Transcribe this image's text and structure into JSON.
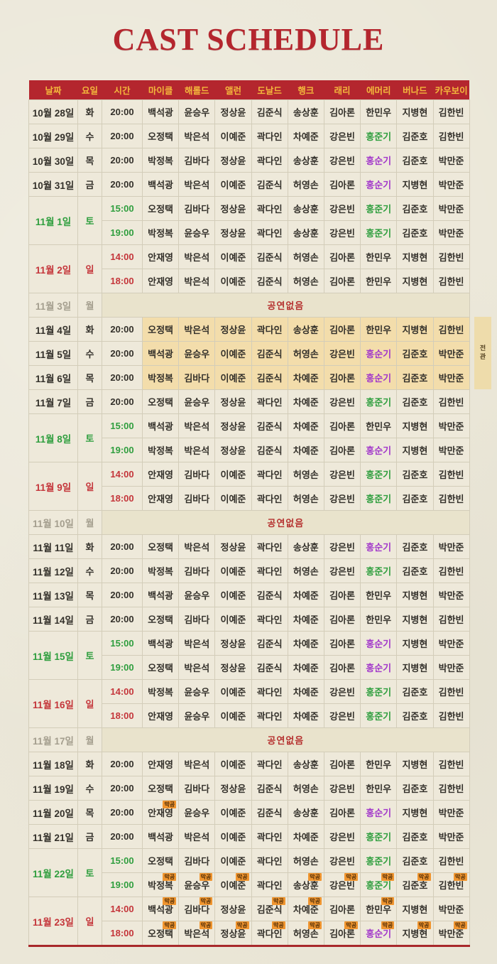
{
  "title": "CAST SCHEDULE",
  "side_tab": {
    "label": "전관"
  },
  "badge_label": "막공",
  "no_show_label": "공연없음",
  "colors": {
    "header_bg": "#b4262e",
    "header_text": "#f3b83c",
    "title": "#b4262e",
    "saturday_green": "#2f9e3e",
    "sunday_red": "#c4353a",
    "name_purple": "#a238ca",
    "monday_gray": "#a49e8e",
    "highlight_bg": "#f3ddab",
    "noshow_bg": "#e9e3cc",
    "badge_bg": "#f0952f",
    "page_bg": "#ebe7d8",
    "bottom_rule": "#a8292b"
  },
  "name_colors": {
    "홍준기": "green",
    "홍순기": "purple"
  },
  "table": {
    "columns": [
      "날짜",
      "요일",
      "시간",
      "마이클",
      "해롤드",
      "앨런",
      "도날드",
      "행크",
      "래리",
      "에머리",
      "버나드",
      "카우보이"
    ],
    "groups": [
      {
        "date": "10월 28일",
        "day": "화",
        "kind": "weekday",
        "slots": [
          {
            "time": "20:00",
            "cast": [
              "백석광",
              "윤승우",
              "정상윤",
              "김준식",
              "송상훈",
              "김아론",
              "한민우",
              "지병현",
              "김한빈"
            ]
          }
        ]
      },
      {
        "date": "10월 29일",
        "day": "수",
        "kind": "weekday",
        "slots": [
          {
            "time": "20:00",
            "cast": [
              "오정택",
              "박은석",
              "이예준",
              "곽다인",
              "차예준",
              "강은빈",
              "홍준기",
              "김준호",
              "김한빈"
            ]
          }
        ]
      },
      {
        "date": "10월 30일",
        "day": "목",
        "kind": "weekday",
        "slots": [
          {
            "time": "20:00",
            "cast": [
              "박정복",
              "김바다",
              "정상윤",
              "곽다인",
              "송상훈",
              "강은빈",
              "홍순기",
              "김준호",
              "박만준"
            ]
          }
        ]
      },
      {
        "date": "10월 31일",
        "day": "금",
        "kind": "weekday",
        "slots": [
          {
            "time": "20:00",
            "cast": [
              "백석광",
              "박은석",
              "이예준",
              "김준식",
              "허영손",
              "김아론",
              "홍순기",
              "지병현",
              "박만준"
            ]
          }
        ]
      },
      {
        "date": "11월 1일",
        "day": "토",
        "kind": "sat",
        "slots": [
          {
            "time": "15:00",
            "cast": [
              "오정택",
              "김바다",
              "정상윤",
              "곽다인",
              "송상훈",
              "강은빈",
              "홍준기",
              "김준호",
              "박만준"
            ]
          },
          {
            "time": "19:00",
            "cast": [
              "박정복",
              "윤승우",
              "정상윤",
              "곽다인",
              "송상훈",
              "강은빈",
              "홍준기",
              "김준호",
              "박만준"
            ]
          }
        ]
      },
      {
        "date": "11월 2일",
        "day": "일",
        "kind": "sun",
        "slots": [
          {
            "time": "14:00",
            "cast": [
              "안재영",
              "박은석",
              "이예준",
              "김준식",
              "허영손",
              "김아론",
              "한민우",
              "지병현",
              "김한빈"
            ]
          },
          {
            "time": "18:00",
            "cast": [
              "안재영",
              "박은석",
              "이예준",
              "김준식",
              "허영손",
              "김아론",
              "한민우",
              "지병현",
              "김한빈"
            ]
          }
        ]
      },
      {
        "date": "11월 3일",
        "day": "월",
        "kind": "mon",
        "no_show": true
      },
      {
        "date": "11월 4일",
        "day": "화",
        "kind": "weekday",
        "highlight": true,
        "slots": [
          {
            "time": "20:00",
            "cast": [
              "오정택",
              "박은석",
              "정상윤",
              "곽다인",
              "송상훈",
              "김아론",
              "한민우",
              "지병현",
              "김한빈"
            ]
          }
        ]
      },
      {
        "date": "11월 5일",
        "day": "수",
        "kind": "weekday",
        "highlight": true,
        "slots": [
          {
            "time": "20:00",
            "cast": [
              "백석광",
              "윤승우",
              "이예준",
              "김준식",
              "허영손",
              "강은빈",
              "홍순기",
              "김준호",
              "박만준"
            ]
          }
        ]
      },
      {
        "date": "11월 6일",
        "day": "목",
        "kind": "weekday",
        "highlight": true,
        "slots": [
          {
            "time": "20:00",
            "cast": [
              "박정복",
              "김바다",
              "이예준",
              "김준식",
              "차예준",
              "김아론",
              "홍순기",
              "김준호",
              "박만준"
            ]
          }
        ]
      },
      {
        "date": "11월 7일",
        "day": "금",
        "kind": "weekday",
        "slots": [
          {
            "time": "20:00",
            "cast": [
              "오정택",
              "윤승우",
              "정상윤",
              "곽다인",
              "차예준",
              "강은빈",
              "홍준기",
              "김준호",
              "김한빈"
            ]
          }
        ]
      },
      {
        "date": "11월 8일",
        "day": "토",
        "kind": "sat",
        "slots": [
          {
            "time": "15:00",
            "cast": [
              "백석광",
              "박은석",
              "정상윤",
              "김준식",
              "차예준",
              "김아론",
              "한민우",
              "지병현",
              "박만준"
            ]
          },
          {
            "time": "19:00",
            "cast": [
              "박정복",
              "박은석",
              "정상윤",
              "김준식",
              "차예준",
              "김아론",
              "홍순기",
              "지병현",
              "박만준"
            ]
          }
        ]
      },
      {
        "date": "11월 9일",
        "day": "일",
        "kind": "sun",
        "slots": [
          {
            "time": "14:00",
            "cast": [
              "안재영",
              "김바다",
              "이예준",
              "곽다인",
              "허영손",
              "강은빈",
              "홍준기",
              "김준호",
              "김한빈"
            ]
          },
          {
            "time": "18:00",
            "cast": [
              "안재영",
              "김바다",
              "이예준",
              "곽다인",
              "허영손",
              "강은빈",
              "홍준기",
              "김준호",
              "김한빈"
            ]
          }
        ]
      },
      {
        "date": "11월 10일",
        "day": "월",
        "kind": "mon",
        "no_show": true
      },
      {
        "date": "11월 11일",
        "day": "화",
        "kind": "weekday",
        "slots": [
          {
            "time": "20:00",
            "cast": [
              "오정택",
              "박은석",
              "정상윤",
              "곽다인",
              "송상훈",
              "강은빈",
              "홍순기",
              "김준호",
              "박만준"
            ]
          }
        ]
      },
      {
        "date": "11월 12일",
        "day": "수",
        "kind": "weekday",
        "slots": [
          {
            "time": "20:00",
            "cast": [
              "박정복",
              "김바다",
              "이예준",
              "곽다인",
              "허영손",
              "강은빈",
              "홍준기",
              "김준호",
              "김한빈"
            ]
          }
        ]
      },
      {
        "date": "11월 13일",
        "day": "목",
        "kind": "weekday",
        "slots": [
          {
            "time": "20:00",
            "cast": [
              "백석광",
              "윤승우",
              "이예준",
              "김준식",
              "차예준",
              "김아론",
              "한민우",
              "지병현",
              "박만준"
            ]
          }
        ]
      },
      {
        "date": "11월 14일",
        "day": "금",
        "kind": "weekday",
        "slots": [
          {
            "time": "20:00",
            "cast": [
              "오정택",
              "김바다",
              "이예준",
              "곽다인",
              "차예준",
              "김아론",
              "한민우",
              "지병현",
              "김한빈"
            ]
          }
        ]
      },
      {
        "date": "11월 15일",
        "day": "토",
        "kind": "sat",
        "slots": [
          {
            "time": "15:00",
            "cast": [
              "백석광",
              "박은석",
              "정상윤",
              "김준식",
              "차예준",
              "김아론",
              "홍순기",
              "지병현",
              "박만준"
            ]
          },
          {
            "time": "19:00",
            "cast": [
              "오정택",
              "박은석",
              "정상윤",
              "김준식",
              "차예준",
              "김아론",
              "홍순기",
              "지병현",
              "박만준"
            ]
          }
        ]
      },
      {
        "date": "11월 16일",
        "day": "일",
        "kind": "sun",
        "slots": [
          {
            "time": "14:00",
            "cast": [
              "박정복",
              "윤승우",
              "이예준",
              "곽다인",
              "차예준",
              "강은빈",
              "홍준기",
              "김준호",
              "김한빈"
            ]
          },
          {
            "time": "18:00",
            "cast": [
              "안재영",
              "윤승우",
              "이예준",
              "곽다인",
              "차예준",
              "강은빈",
              "홍준기",
              "김준호",
              "김한빈"
            ]
          }
        ]
      },
      {
        "date": "11월 17일",
        "day": "월",
        "kind": "mon",
        "no_show": true
      },
      {
        "date": "11월 18일",
        "day": "화",
        "kind": "weekday",
        "slots": [
          {
            "time": "20:00",
            "cast": [
              "안재영",
              "박은석",
              "이예준",
              "곽다인",
              "송상훈",
              "김아론",
              "한민우",
              "지병현",
              "김한빈"
            ]
          }
        ]
      },
      {
        "date": "11월 19일",
        "day": "수",
        "kind": "weekday",
        "slots": [
          {
            "time": "20:00",
            "cast": [
              "오정택",
              "김바다",
              "정상윤",
              "김준식",
              "허영손",
              "강은빈",
              "한민우",
              "김준호",
              "김한빈"
            ]
          }
        ]
      },
      {
        "date": "11월 20일",
        "day": "목",
        "kind": "weekday",
        "slots": [
          {
            "time": "20:00",
            "cast": [
              "안재영",
              "윤승우",
              "이예준",
              "김준식",
              "송상훈",
              "김아론",
              "홍순기",
              "지병현",
              "박만준"
            ],
            "badges": [
              0
            ]
          }
        ]
      },
      {
        "date": "11월 21일",
        "day": "금",
        "kind": "weekday",
        "slots": [
          {
            "time": "20:00",
            "cast": [
              "백석광",
              "박은석",
              "이예준",
              "곽다인",
              "차예준",
              "강은빈",
              "홍준기",
              "김준호",
              "박만준"
            ]
          }
        ]
      },
      {
        "date": "11월 22일",
        "day": "토",
        "kind": "sat",
        "slots": [
          {
            "time": "15:00",
            "cast": [
              "오정택",
              "김바다",
              "이예준",
              "곽다인",
              "허영손",
              "강은빈",
              "홍준기",
              "김준호",
              "김한빈"
            ]
          },
          {
            "time": "19:00",
            "cast": [
              "박정복",
              "윤승우",
              "이예준",
              "곽다인",
              "송상훈",
              "강은빈",
              "홍준기",
              "김준호",
              "김한빈"
            ],
            "badges": [
              0,
              1,
              2,
              4,
              5,
              6,
              7,
              8
            ]
          }
        ]
      },
      {
        "date": "11월 23일",
        "day": "일",
        "kind": "sun",
        "slots": [
          {
            "time": "14:00",
            "cast": [
              "백석광",
              "김바다",
              "정상윤",
              "김준식",
              "차예준",
              "김아론",
              "한민우",
              "지병현",
              "박만준"
            ],
            "badges": [
              0,
              1,
              3,
              4,
              6
            ]
          },
          {
            "time": "18:00",
            "cast": [
              "오정택",
              "박은석",
              "정상윤",
              "곽다인",
              "허영손",
              "김아론",
              "홍순기",
              "지병현",
              "박만준"
            ],
            "badges": [
              0,
              1,
              2,
              3,
              4,
              5,
              6,
              7,
              8
            ]
          }
        ]
      }
    ]
  }
}
